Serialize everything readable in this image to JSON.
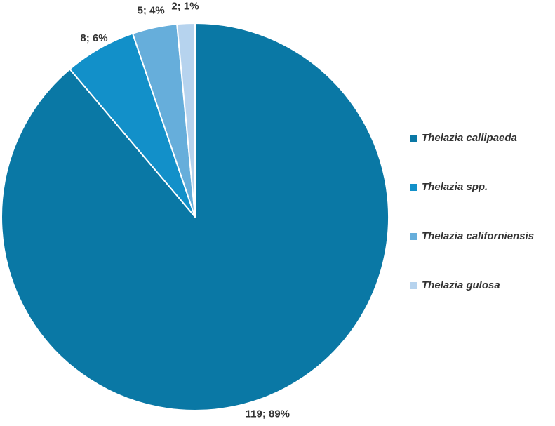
{
  "chart_data": {
    "type": "pie",
    "categories": [
      "Thelazia callipaeda",
      "Thelazia spp.",
      "Thelazia californiensis",
      "Thelazia gulosa"
    ],
    "values": [
      119,
      8,
      5,
      2
    ],
    "percentages": [
      89,
      6,
      4,
      1
    ],
    "data_labels": [
      "119; 89%",
      "8; 6%",
      "5; 4%",
      "2; 1%"
    ],
    "colors": [
      "#0a78a5",
      "#1290c9",
      "#66aedb",
      "#b6d3ee"
    ],
    "title": "",
    "legend_position": "right"
  }
}
